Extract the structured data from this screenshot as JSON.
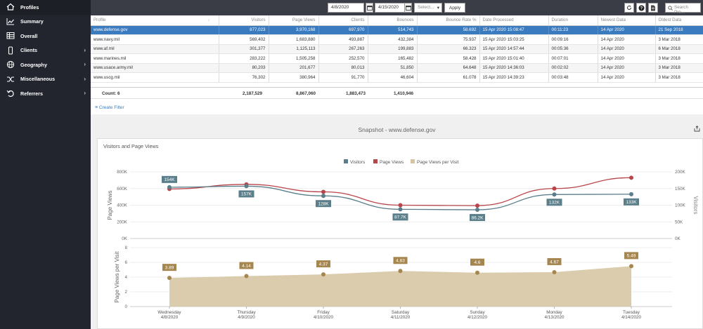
{
  "sidebar": {
    "items": [
      {
        "label": "Profiles",
        "icon": "home-icon",
        "chevron": false
      },
      {
        "label": "Summary",
        "icon": "line-chart-icon",
        "chevron": false
      },
      {
        "label": "Overall",
        "icon": "table-icon",
        "chevron": false
      },
      {
        "label": "Clients",
        "icon": "mobile-icon",
        "chevron": true
      },
      {
        "label": "Geography",
        "icon": "globe-icon",
        "chevron": true
      },
      {
        "label": "Miscellaneous",
        "icon": "shuffle-icon",
        "chevron": true
      },
      {
        "label": "Referrers",
        "icon": "undo-icon",
        "chevron": true
      }
    ]
  },
  "toolbar": {
    "start_date": "4/8/2020",
    "end_date": "4/15/2020",
    "select_placeholder": "Select...",
    "apply_label": "Apply",
    "search_placeholder": "Search Pro..."
  },
  "table": {
    "headers": [
      "Profile",
      "Visitors",
      "Page Views",
      "Clients",
      "Bounces",
      "Bounce Rate %",
      "Date Processed",
      "Duration",
      "Newest Data",
      "Oldest Data"
    ],
    "rows": [
      [
        "www.defense.gov",
        "877,023",
        "3,970,168",
        "697,970",
        "514,743",
        "58.692",
        "15 Apr 2020 15:08:47",
        "00:11:23",
        "14 Apr 2020",
        "21 Sep 2018"
      ],
      [
        "www.navy.mil",
        "569,402",
        "1,683,880",
        "493,887",
        "432,384",
        "75.937",
        "15 Apr 2020 15:03:25",
        "00:09:16",
        "14 Apr 2020",
        "3 Mar 2018"
      ],
      [
        "www.af.mil",
        "301,377",
        "1,125,113",
        "267,263",
        "199,883",
        "66.323",
        "15 Apr 2020 14:57:44",
        "00:05:36",
        "14 Apr 2020",
        "6 Mar 2018"
      ],
      [
        "www.marines.mil",
        "283,222",
        "1,505,258",
        "252,570",
        "165,482",
        "58.428",
        "15 Apr 2020 15:01:40",
        "00:07:01",
        "14 Apr 2020",
        "3 Mar 2018"
      ],
      [
        "www.usace.army.mil",
        "80,203",
        "201,677",
        "80,013",
        "51,850",
        "64.648",
        "15 Apr 2020 14:36:03",
        "00:02:02",
        "14 Apr 2020",
        "3 Mar 2018"
      ],
      [
        "www.uscg.mil",
        "76,302",
        "380,964",
        "91,770",
        "46,604",
        "61.078",
        "15 Apr 2020 14:39:23",
        "00:03:48",
        "14 Apr 2020",
        "3 Mar 2018"
      ]
    ],
    "count_label": "Count: 6",
    "totals": {
      "visitors": "2,187,529",
      "page_views": "8,867,060",
      "clients": "1,883,473",
      "bounces": "1,410,946"
    }
  },
  "create_filter_label": "Create Filter",
  "snapshot_title": "Snapshot - www.defense.gov",
  "card_title": "Visitors and Page Views",
  "colors": {
    "visitors": "#5a7f8a",
    "page_views": "#b8454b",
    "ppv": "#d6c3a0",
    "selected_row": "#3a7bbf",
    "sidebar": "#23252e"
  },
  "chart_data": [
    {
      "type": "line",
      "legend": [
        "Visitors",
        "Page Views",
        "Page Views per Visit"
      ],
      "legend_position": "top-center",
      "categories": [
        "Wednesday\n4/8/2020",
        "Thursday\n4/9/2020",
        "Friday\n4/10/2020",
        "Saturday\n4/11/2020",
        "Sunday\n4/12/2020",
        "Monday\n4/13/2020",
        "Tuesday\n4/14/2020"
      ],
      "ylabel_left": "Page Views",
      "ylabel_right": "Visitors",
      "yleft_ticks": [
        "0K",
        "200K",
        "400K",
        "600K",
        "800K"
      ],
      "yright_ticks": [
        "0K",
        "50K",
        "100K",
        "150K",
        "200K"
      ],
      "yleft_lim": [
        0,
        800000
      ],
      "yright_lim": [
        0,
        200000
      ],
      "series": [
        {
          "name": "Visitors",
          "axis": "right",
          "values": [
            154000,
            157000,
            128000,
            87700,
            86200,
            132000,
            133000
          ],
          "labels": [
            "154K",
            "157K",
            "128K",
            "87.7K",
            "86.2K",
            "132K",
            "133K"
          ]
        },
        {
          "name": "Page Views",
          "axis": "left",
          "values": [
            595000,
            650000,
            560000,
            400000,
            395000,
            600000,
            730000
          ]
        }
      ]
    },
    {
      "type": "area",
      "ylabel": "Page Views per Visit",
      "ylim": [
        0,
        8
      ],
      "yticks": [
        "0",
        "2",
        "4",
        "6",
        "8"
      ],
      "series": [
        {
          "name": "Page Views per Visit",
          "values": [
            3.89,
            4.14,
            4.37,
            4.83,
            4.6,
            4.67,
            5.49
          ],
          "labels": [
            "3.89",
            "4.14",
            "4.37",
            "4.83",
            "4.6",
            "4.67",
            "5.49"
          ]
        }
      ],
      "x_day_labels": [
        "Wednesday",
        "Thursday",
        "Friday",
        "Saturday",
        "Sunday",
        "Monday",
        "Tuesday"
      ],
      "x_date_labels": [
        "4/8/2020",
        "4/9/2020",
        "4/10/2020",
        "4/11/2020",
        "4/12/2020",
        "4/13/2020",
        "4/14/2020"
      ]
    }
  ]
}
